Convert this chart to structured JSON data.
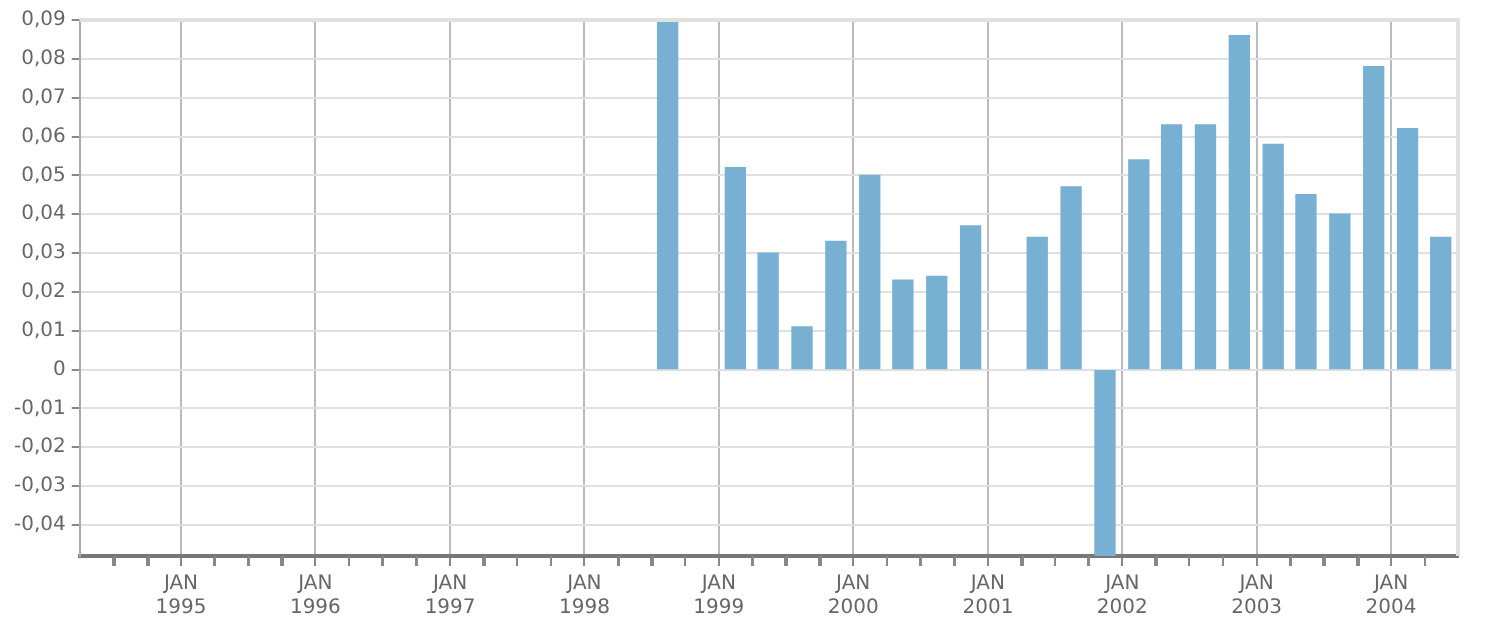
{
  "chart_data": {
    "type": "bar",
    "x": [
      "1998-08-15",
      "1998-11-15",
      "1999-02-15",
      "1999-05-15",
      "1999-08-15",
      "1999-11-15",
      "2000-02-15",
      "2000-05-15",
      "2000-08-15",
      "2000-11-15",
      "2001-02-15",
      "2001-05-15",
      "2001-08-15",
      "2001-11-15",
      "2002-02-15",
      "2002-05-15",
      "2002-08-15",
      "2002-11-15",
      "2003-02-15",
      "2003-05-15",
      "2003-08-15",
      "2003-11-15",
      "2004-02-15",
      "2004-05-15"
    ],
    "series": [
      {
        "color": "#78b0d3",
        "values": [
          0.09,
          null,
          0.052,
          0.03,
          0.011,
          0.033,
          0.05,
          0.023,
          0.024,
          0.037,
          null,
          0.034,
          0.047,
          -0.048,
          0.054,
          0.063,
          0.063,
          0.086,
          0.058,
          0.045,
          0.04,
          0.078,
          0.062,
          0.034
        ]
      }
    ],
    "ylim": [
      -0.048,
      0.09
    ],
    "yticks": [
      {
        "value": -0.04,
        "label": "-0,04"
      },
      {
        "value": -0.03,
        "label": "-0,03"
      },
      {
        "value": -0.02,
        "label": "-0,02"
      },
      {
        "value": -0.01,
        "label": "-0,01"
      },
      0,
      {
        "value": 0.01,
        "label": "0,01"
      },
      {
        "value": 0.02,
        "label": "0,02"
      },
      {
        "value": 0.03,
        "label": "0,03"
      },
      {
        "value": 0.04,
        "label": "0,04"
      },
      {
        "value": 0.05,
        "label": "0,05"
      },
      {
        "value": 0.06,
        "label": "0,06"
      },
      {
        "value": 0.07,
        "label": "0,07"
      },
      {
        "value": 0.08,
        "label": "0,08"
      },
      {
        "value": 0.09,
        "label": "0,09"
      }
    ],
    "xlim": [
      "1994-04-01",
      "2004-07-01"
    ],
    "xticks": [
      {
        "value": "1994-07-01",
        "label": null
      },
      {
        "value": "1994-10-01",
        "label": null
      },
      {
        "value": "1995-01-01",
        "label": "JAN 1995"
      },
      {
        "value": "1995-04-01",
        "label": null
      },
      {
        "value": "1995-07-01",
        "label": null
      },
      {
        "value": "1995-10-01",
        "label": null
      },
      {
        "value": "1996-01-01",
        "label": "JAN 1996"
      },
      {
        "value": "1996-04-01",
        "label": null
      },
      {
        "value": "1996-07-01",
        "label": null
      },
      {
        "value": "1996-10-01",
        "label": null
      },
      {
        "value": "1997-01-01",
        "label": "JAN 1997"
      },
      {
        "value": "1997-04-01",
        "label": null
      },
      {
        "value": "1997-07-01",
        "label": null
      },
      {
        "value": "1997-10-01",
        "label": null
      },
      {
        "value": "1998-01-01",
        "label": "JAN 1998"
      },
      {
        "value": "1998-04-01",
        "label": null
      },
      {
        "value": "1998-07-01",
        "label": null
      },
      {
        "value": "1998-10-01",
        "label": null
      },
      {
        "value": "1999-01-01",
        "label": "JAN 1999"
      },
      {
        "value": "1999-04-01",
        "label": null
      },
      {
        "value": "1999-07-01",
        "label": null
      },
      {
        "value": "1999-10-01",
        "label": null
      },
      {
        "value": "2000-01-01",
        "label": "JAN 2000"
      },
      {
        "value": "2000-04-01",
        "label": null
      },
      {
        "value": "2000-07-01",
        "label": null
      },
      {
        "value": "2000-10-01",
        "label": null
      },
      {
        "value": "2001-01-01",
        "label": "JAN 2001"
      },
      {
        "value": "2001-04-01",
        "label": null
      },
      {
        "value": "2001-07-01",
        "label": null
      },
      {
        "value": "2001-10-01",
        "label": null
      },
      {
        "value": "2002-01-01",
        "label": "JAN 2002"
      },
      {
        "value": "2002-04-01",
        "label": null
      },
      {
        "value": "2002-07-01",
        "label": null
      },
      {
        "value": "2002-10-01",
        "label": null
      },
      {
        "value": "2003-01-01",
        "label": "JAN 2003"
      },
      {
        "value": "2003-04-01",
        "label": null
      },
      {
        "value": "2003-07-01",
        "label": null
      },
      {
        "value": "2003-10-01",
        "label": null
      },
      {
        "value": "2004-01-01",
        "label": "JAN 2004"
      },
      {
        "value": "2004-04-01",
        "label": null
      }
    ],
    "grid": true
  }
}
